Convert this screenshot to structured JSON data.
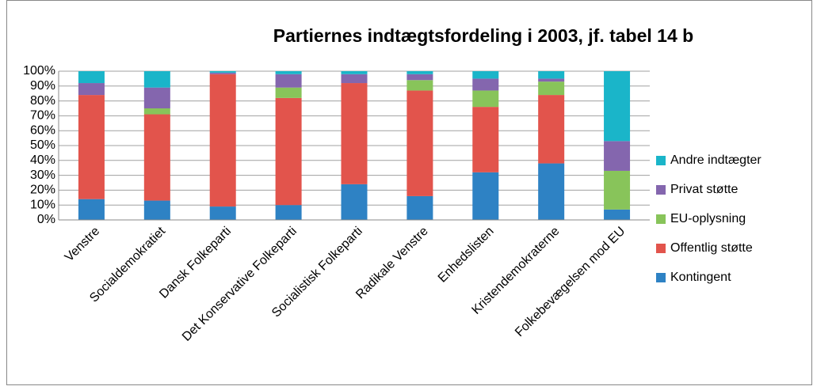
{
  "chart_data": {
    "type": "stacked_bar",
    "title": "Partiernes indtægtsfordeling i 2003, jf. tabel 14 b",
    "categories": [
      "Venstre",
      "Socialdemokratiet",
      "Dansk Folkeparti",
      "Det Konservative Folkeparti",
      "Socialistisk Folkeparti",
      "Radikale Venstre",
      "Enhedslisten",
      "Kristendemokraterne",
      "Folkebevægelsen mod EU"
    ],
    "series": [
      {
        "name": "Kontingent",
        "color": "#2e82c4",
        "values": [
          14,
          13,
          9,
          10,
          24,
          16,
          32,
          38,
          7
        ]
      },
      {
        "name": "Offentlig støtte",
        "color": "#e2544c",
        "values": [
          70,
          58,
          89,
          72,
          68,
          71,
          44,
          46,
          0
        ]
      },
      {
        "name": "EU-oplysning",
        "color": "#88c45a",
        "values": [
          0,
          4,
          0,
          7,
          0,
          7,
          11,
          9,
          26
        ]
      },
      {
        "name": "Privat støtte",
        "color": "#8466ae",
        "values": [
          8,
          14,
          1,
          9,
          6,
          4,
          8,
          2,
          20
        ]
      },
      {
        "name": "Andre indtægter",
        "color": "#1ab5c9",
        "values": [
          8,
          11,
          1,
          2,
          2,
          2,
          5,
          5,
          47
        ]
      }
    ],
    "ylim": [
      0,
      100
    ],
    "yticks": [
      {
        "value": 0,
        "label": "0%"
      },
      {
        "value": 10,
        "label": "10%"
      },
      {
        "value": 20,
        "label": "20%"
      },
      {
        "value": 30,
        "label": "30%"
      },
      {
        "value": 40,
        "label": "40%"
      },
      {
        "value": 50,
        "label": "50%"
      },
      {
        "value": 60,
        "label": "60%"
      },
      {
        "value": 70,
        "label": "70%"
      },
      {
        "value": 80,
        "label": "80%"
      },
      {
        "value": 90,
        "label": "90%"
      },
      {
        "value": 100,
        "label": "100%"
      }
    ],
    "grid": true,
    "legend": "right"
  }
}
